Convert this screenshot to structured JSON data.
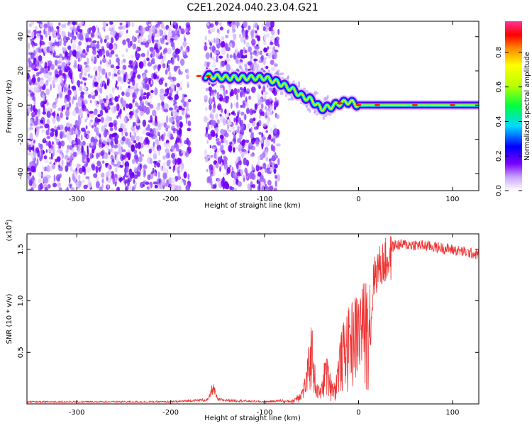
{
  "title": "C2E1.2024.040.23.04.G21",
  "chart_data": [
    {
      "type": "heatmap",
      "xlabel": "Height of straight line (km)",
      "ylabel": "Frequency (Hz)",
      "xlim": [
        -353,
        128
      ],
      "ylim": [
        -50,
        49
      ],
      "xticks": [
        -300,
        -200,
        -100,
        0,
        100
      ],
      "yticks": [
        -40,
        -20,
        0,
        20,
        40
      ],
      "colorbar": {
        "label": "Normalized spectral amplitude",
        "range": [
          0,
          0.98
        ],
        "ticks": [
          0.0,
          0.2,
          0.4,
          0.6,
          0.8
        ]
      },
      "ridge": {
        "x": [
          -178,
          -160,
          -140,
          -100,
          -85,
          -70,
          -60,
          -50,
          -40,
          -30,
          -20,
          -10,
          0,
          20,
          60,
          100,
          128
        ],
        "y": [
          17,
          17,
          16,
          16,
          13,
          9,
          5,
          3,
          -2,
          -1,
          1,
          2,
          0,
          0,
          0,
          0,
          0
        ]
      },
      "gap_ranges": [
        [
          -180,
          -163
        ]
      ]
    },
    {
      "type": "line",
      "xlabel": "Height of straight line (km)",
      "ylabel": "SNR (10 * v/v)",
      "multiplier_label": "(x10",
      "multiplier_exponent": "4",
      "multiplier_close": ")",
      "xlim": [
        -353,
        128
      ],
      "ylim": [
        0,
        16500
      ],
      "xticks": [
        -300,
        -200,
        -100,
        0,
        100
      ],
      "ytick_values": [
        5000,
        10000,
        15000
      ],
      "ytick_labels": [
        "0.5",
        "1.0",
        "1.5"
      ],
      "series_color": "#ee3333",
      "envelope": {
        "x": [
          -353,
          -200,
          -160,
          -155,
          -150,
          -100,
          -70,
          -60,
          -55,
          -50,
          -45,
          -40,
          -35,
          -30,
          -25,
          -20,
          -15,
          -10,
          -5,
          0,
          10,
          20,
          30,
          40,
          60,
          80,
          100,
          128
        ],
        "y": [
          200,
          200,
          400,
          1600,
          400,
          200,
          400,
          1500,
          3500,
          8000,
          2000,
          1500,
          5000,
          3000,
          2000,
          6000,
          8000,
          9000,
          10000,
          10500,
          12000,
          14500,
          15500,
          16000,
          16000,
          15800,
          15500,
          15000
        ]
      }
    }
  ]
}
